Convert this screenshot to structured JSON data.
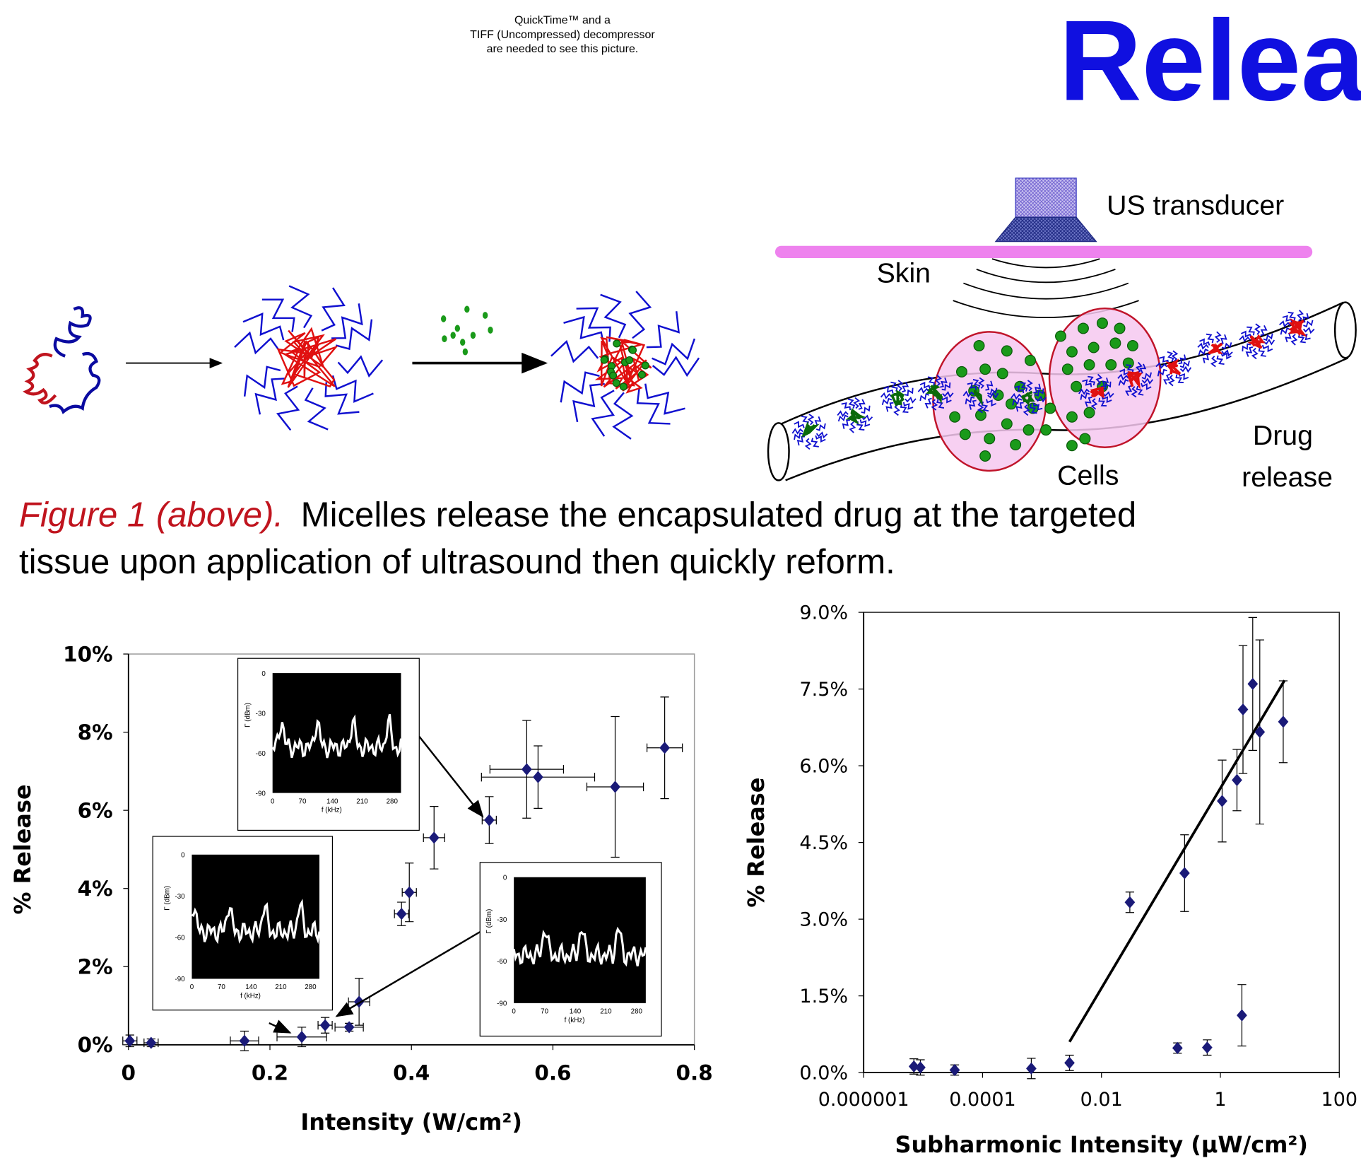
{
  "header": {
    "notice": [
      "QuickTime™ and a",
      "TIFF (Uncompressed) decompressor",
      "are needed to see this picture."
    ],
    "title": "Relea"
  },
  "diagram": {
    "transducer": "US transducer",
    "skin": "Skin",
    "cells": "Cells",
    "release": [
      "Drug",
      "release"
    ]
  },
  "caption": {
    "label": "Figure 1 (above).",
    "text": [
      "Micelles release the encapsulated drug at the targeted",
      "tissue upon application of ultrasound then quickly reform."
    ]
  },
  "chart_data": [
    {
      "type": "scatter",
      "x_label": "Intensity (W/cm²)",
      "y_label": "% Release",
      "log_x": false,
      "color": "#1a1a78",
      "xlim": [
        0,
        0.8
      ],
      "xticks": [
        0,
        0.2,
        0.4,
        0.6,
        0.8
      ],
      "ylim": [
        0,
        10
      ],
      "yticks": [
        {
          "value": 0,
          "label": "0%"
        },
        {
          "value": 2,
          "label": "2%"
        },
        {
          "value": 4,
          "label": "4%"
        },
        {
          "value": 6,
          "label": "6%"
        },
        {
          "value": 8,
          "label": "8%"
        },
        {
          "value": 10,
          "label": "10%"
        }
      ],
      "x": [
        0.002,
        0.032,
        0.164,
        0.245,
        0.278,
        0.312,
        0.326,
        0.386,
        0.397,
        0.432,
        0.51,
        0.563,
        0.579,
        0.688,
        0.758
      ],
      "values": [
        0.1,
        0.05,
        0.1,
        0.2,
        0.5,
        0.45,
        1.1,
        3.35,
        3.9,
        5.3,
        5.75,
        7.05,
        6.85,
        6.6,
        7.6
      ],
      "xerr": [
        0.01,
        0.01,
        0.02,
        0.035,
        0.01,
        0.02,
        0.015,
        0.01,
        0.01,
        0.015,
        0.01,
        0.052,
        0.08,
        0.04,
        0.025
      ],
      "yerr": [
        0.15,
        0.1,
        0.25,
        0.25,
        0.2,
        0.1,
        0.6,
        0.3,
        0.75,
        0.8,
        0.6,
        1.25,
        0.8,
        1.8,
        1.3
      ]
    },
    {
      "type": "scatter",
      "x_label": "Subharmonic Intensity (μW/cm²)",
      "y_label": "% Release",
      "log_x": true,
      "color": "#1a1a78",
      "xlim": [
        1e-06,
        100
      ],
      "xticks": [
        1e-06,
        0.0001,
        0.01,
        1,
        100
      ],
      "ylim": [
        0,
        9
      ],
      "yticks": [
        {
          "value": 0,
          "label": "0.0%"
        },
        {
          "value": 1.5,
          "label": "1.5%"
        },
        {
          "value": 3,
          "label": "3.0%"
        },
        {
          "value": 4.5,
          "label": "4.5%"
        },
        {
          "value": 6,
          "label": "6.0%"
        },
        {
          "value": 7.5,
          "label": "7.5%"
        },
        {
          "value": 9,
          "label": "9.0%"
        }
      ],
      "x": [
        7e-06,
        9e-06,
        3.4e-05,
        0.00066,
        0.0029,
        0.03,
        0.25,
        0.19,
        0.6,
        1.07,
        1.9,
        2.4,
        2.3,
        3.5,
        4.6,
        11.4
      ],
      "values": [
        0.12,
        0.1,
        0.05,
        0.08,
        0.19,
        3.33,
        3.9,
        0.48,
        0.49,
        5.31,
        5.72,
        7.1,
        1.12,
        7.6,
        6.66,
        6.86
      ],
      "yerr": [
        0.15,
        0.15,
        0.1,
        0.2,
        0.15,
        0.2,
        0.75,
        0.1,
        0.15,
        0.8,
        0.6,
        1.25,
        0.6,
        1.3,
        1.8,
        0.8
      ],
      "trendline": {
        "x": [
          0.0029,
          12
        ],
        "values": [
          0.6,
          7.67
        ]
      }
    }
  ],
  "insets": [
    {
      "xticks": [
        0,
        70,
        140,
        210,
        280
      ],
      "yticks": [
        0,
        -30,
        -60,
        -90
      ],
      "xlabel": "f (kHz)",
      "ylabel": "Γ (dBm)"
    },
    {
      "xticks": [
        0,
        70,
        140,
        210,
        280
      ],
      "yticks": [
        0,
        -30,
        -60,
        -90
      ],
      "xlabel": "f (kHz)",
      "ylabel": "Γ (dBm)"
    },
    {
      "xticks": [
        0,
        70,
        140,
        210,
        280
      ],
      "yticks": [
        0,
        -30,
        -60,
        -90
      ],
      "xlabel": "f (kHz)",
      "ylabel": "Γ (dBm)"
    }
  ]
}
